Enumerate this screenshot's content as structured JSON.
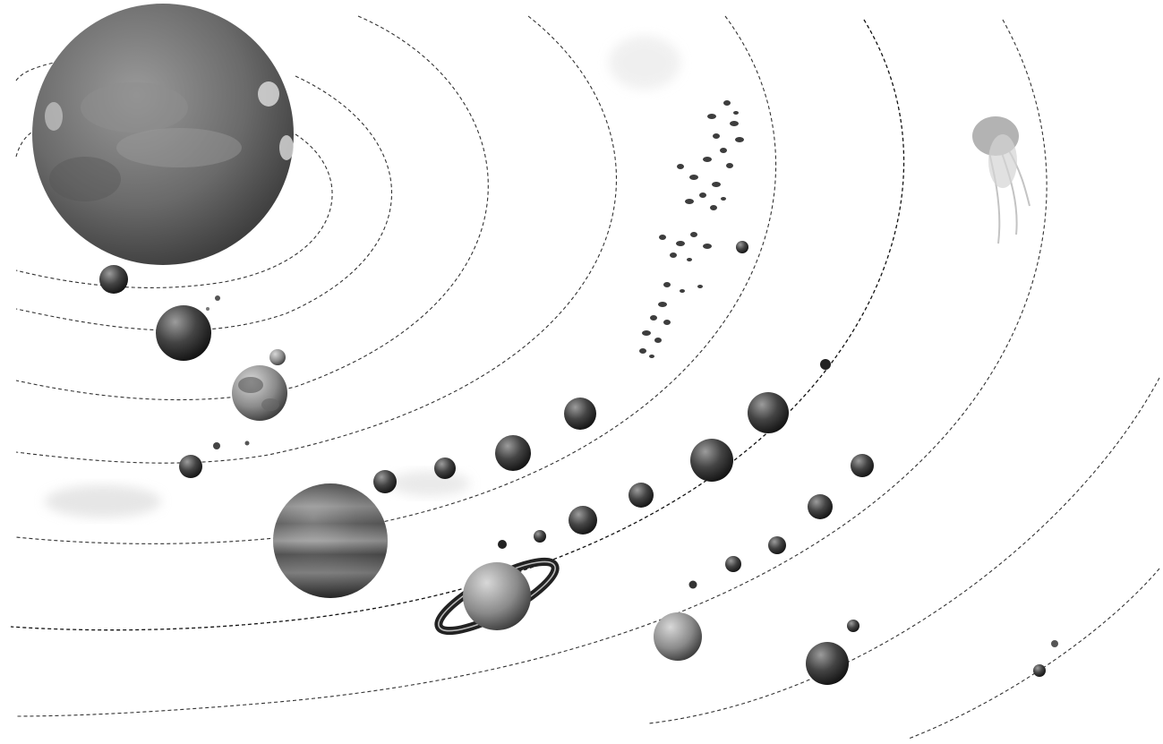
{
  "scene": {
    "subject": "solar-system-diagram",
    "palette": {
      "background": "#ffffff",
      "orbit_line": "#333333",
      "sun": "#6e6e6e",
      "planet": "#4a4a4a",
      "moon": "#2a2a2a",
      "asteroid": "#3d3d3d",
      "comet": "#9a9a9a"
    },
    "bodies": [
      "sun",
      "mercury",
      "venus",
      "earth",
      "moon",
      "mars",
      "jupiter",
      "saturn",
      "uranus",
      "neptune",
      "pluto",
      "asteroid-belt",
      "comet"
    ]
  }
}
